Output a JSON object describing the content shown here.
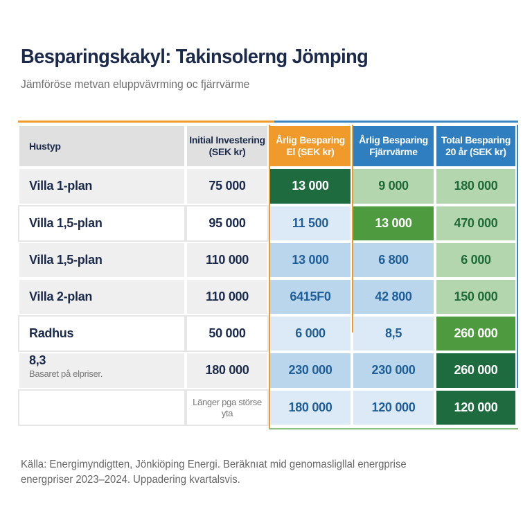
{
  "header": {
    "title": "Besparingskakyl: Takinsolerng Jömping",
    "subtitle": "Jämföröse metvan eluppvävrming oc fjärrvärme"
  },
  "table": {
    "headers": [
      "Hustyp",
      "Initial Investering\n(SEK kr)",
      "Årlig Besparing\nEl (SEK kr)",
      "Årlig Besparing\nFjärrvärme",
      "Total Besparing\n20 år (SEK kr)"
    ],
    "rows": [
      {
        "hustyp": "Villa 1-plan",
        "investering": "75 000",
        "el": "13 000",
        "fjarr": "9 000",
        "total": "180 000"
      },
      {
        "hustyp": "Villa 1,5-plan",
        "investering": "95 000",
        "el": "11 500",
        "fjarr": "13 000",
        "total": "470 000"
      },
      {
        "hustyp": "Villa 1,5-plan",
        "investering": "110 000",
        "el": "13 000",
        "fjarr": "6 800",
        "total": "6 000"
      },
      {
        "hustyp": "Villa 2-plan",
        "investering": "110 000",
        "el": "6415F0",
        "fjarr": "42 800",
        "total": "150 000"
      },
      {
        "hustyp": "Radhus",
        "investering": "50 000",
        "el": "6 000",
        "fjarr": "8,5",
        "total": "260 000"
      },
      {
        "hustyp": "8,3",
        "hustyp_note": "Basaret på elpriser.",
        "investering": "180 000",
        "el": "230 000",
        "fjarr": "230 000",
        "total": "260 000"
      },
      {
        "hustyp": "",
        "investering_note": "Länger pga störse\nyta",
        "el": "180 000",
        "fjarr": "120 000",
        "total": "120 000"
      }
    ]
  },
  "colors": {
    "title": "#1b2a4a",
    "orange_accent": "#ef9a2a",
    "blue_accent": "#2f7fc0",
    "dark_green": "#1e6b3f",
    "green": "#4e9a3e",
    "light_green": "#b3d6ae",
    "light_blue": "#dbeaf6",
    "blue": "#b9d6ec"
  },
  "footer": {
    "line1": "Källa: Energimyndigtten, Jönkiöping Energi. Beräknıat mid genomasligllal energprise",
    "line2": "energpriser 2023–2024. Uppadering kvartalsvis."
  }
}
